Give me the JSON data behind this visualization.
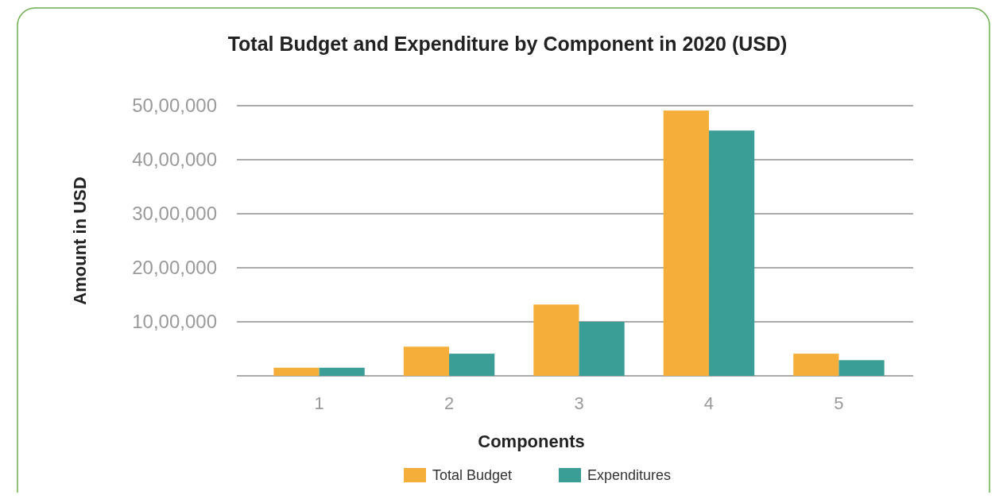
{
  "chart_data": {
    "type": "bar",
    "title": "Total Budget and Expenditure by Component in 2020 (USD)",
    "xlabel": "Components",
    "ylabel": "Amount in USD",
    "categories": [
      "1",
      "2",
      "3",
      "4",
      "5"
    ],
    "series": [
      {
        "name": "Total Budget",
        "color": "#f5ae3a",
        "values": [
          150000,
          540000,
          1320000,
          4910000,
          410000
        ]
      },
      {
        "name": "Expenditures",
        "color": "#3a9e96",
        "values": [
          150000,
          410000,
          1000000,
          4540000,
          290000
        ]
      }
    ],
    "ylim": [
      0,
      5000000
    ],
    "yticks": [
      {
        "value": 0,
        "label": null
      },
      {
        "value": 1000000,
        "label": "10,00,000"
      },
      {
        "value": 2000000,
        "label": "20,00,000"
      },
      {
        "value": 3000000,
        "label": "30,00,000"
      },
      {
        "value": 4000000,
        "label": "40,00,000"
      },
      {
        "value": 5000000,
        "label": "50,00,000"
      }
    ],
    "grid": "y",
    "legend": "bottom"
  }
}
